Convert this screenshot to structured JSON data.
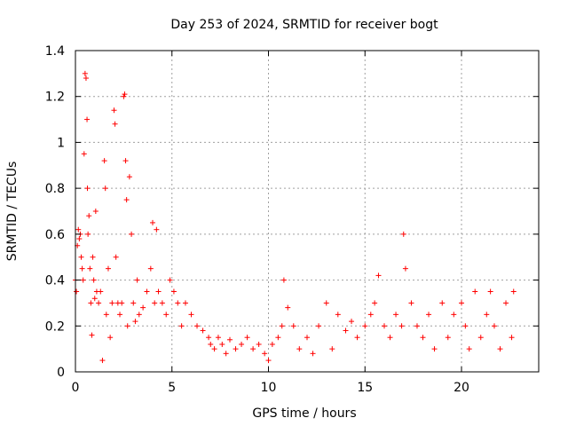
{
  "chart_data": {
    "type": "scatter",
    "title": "Day 253 of 2024, SRMTID for receiver bogt",
    "xlabel": "GPS time / hours",
    "ylabel": "SRMTID / TECUs",
    "xlim": [
      0,
      24
    ],
    "ylim": [
      0,
      1.4
    ],
    "xticks": [
      0,
      5,
      10,
      15,
      20
    ],
    "xtick_labels": [
      "0",
      "5",
      "10",
      "15",
      "20"
    ],
    "yticks": [
      0,
      0.2,
      0.4,
      0.6,
      0.8,
      1,
      1.2,
      1.4
    ],
    "ytick_labels": [
      "0",
      "0.2",
      "0.4",
      "0.6",
      "0.8",
      "1",
      "1.2",
      "1.4"
    ],
    "grid": true,
    "marker": "+",
    "series": [
      {
        "name": "SRMTID",
        "color": "#ff0000",
        "x": [
          0.0,
          0.05,
          0.1,
          0.15,
          0.2,
          0.25,
          0.3,
          0.35,
          0.4,
          0.45,
          0.5,
          0.55,
          0.6,
          0.62,
          0.65,
          0.7,
          0.75,
          0.8,
          0.85,
          0.9,
          0.95,
          1.0,
          1.05,
          1.1,
          1.2,
          1.3,
          1.4,
          1.5,
          1.55,
          1.6,
          1.7,
          1.8,
          1.9,
          2.0,
          2.05,
          2.1,
          2.2,
          2.3,
          2.4,
          2.5,
          2.55,
          2.6,
          2.65,
          2.7,
          2.8,
          2.9,
          3.0,
          3.1,
          3.2,
          3.3,
          3.5,
          3.7,
          3.9,
          4.0,
          4.1,
          4.2,
          4.3,
          4.5,
          4.7,
          4.9,
          5.1,
          5.3,
          5.5,
          5.7,
          6.0,
          6.3,
          6.6,
          6.9,
          7.0,
          7.2,
          7.4,
          7.6,
          7.8,
          8.0,
          8.3,
          8.6,
          8.9,
          9.2,
          9.5,
          9.8,
          10.0,
          10.2,
          10.5,
          10.7,
          10.8,
          11.0,
          11.3,
          11.6,
          12.0,
          12.3,
          12.6,
          13.0,
          13.3,
          13.6,
          14.0,
          14.3,
          14.6,
          15.0,
          15.3,
          15.5,
          15.7,
          16.0,
          16.3,
          16.6,
          16.9,
          17.0,
          17.1,
          17.4,
          17.7,
          18.0,
          18.3,
          18.6,
          19.0,
          19.3,
          19.6,
          20.0,
          20.2,
          20.4,
          20.7,
          21.0,
          21.3,
          21.5,
          21.7,
          22.0,
          22.3,
          22.6,
          22.7
        ],
        "y": [
          0.4,
          0.35,
          0.55,
          0.62,
          0.58,
          0.6,
          0.5,
          0.45,
          0.4,
          0.95,
          1.3,
          1.28,
          1.1,
          0.8,
          0.6,
          0.68,
          0.45,
          0.3,
          0.16,
          0.5,
          0.4,
          0.32,
          0.7,
          0.35,
          0.3,
          0.35,
          0.05,
          0.92,
          0.8,
          0.25,
          0.45,
          0.15,
          0.3,
          1.14,
          1.08,
          0.5,
          0.3,
          0.25,
          0.3,
          1.2,
          1.21,
          0.92,
          0.75,
          0.2,
          0.85,
          0.6,
          0.3,
          0.22,
          0.4,
          0.25,
          0.28,
          0.35,
          0.45,
          0.65,
          0.3,
          0.62,
          0.35,
          0.3,
          0.25,
          0.4,
          0.35,
          0.3,
          0.2,
          0.3,
          0.25,
          0.2,
          0.18,
          0.15,
          0.12,
          0.1,
          0.15,
          0.12,
          0.08,
          0.14,
          0.1,
          0.12,
          0.15,
          0.1,
          0.12,
          0.08,
          0.05,
          0.12,
          0.15,
          0.2,
          0.4,
          0.28,
          0.2,
          0.1,
          0.15,
          0.08,
          0.2,
          0.3,
          0.1,
          0.25,
          0.18,
          0.22,
          0.15,
          0.2,
          0.25,
          0.3,
          0.42,
          0.2,
          0.15,
          0.25,
          0.2,
          0.6,
          0.45,
          0.3,
          0.2,
          0.15,
          0.25,
          0.1,
          0.3,
          0.15,
          0.25,
          0.3,
          0.2,
          0.1,
          0.35,
          0.15,
          0.25,
          0.35,
          0.2,
          0.1,
          0.3,
          0.15,
          0.35
        ]
      }
    ]
  }
}
